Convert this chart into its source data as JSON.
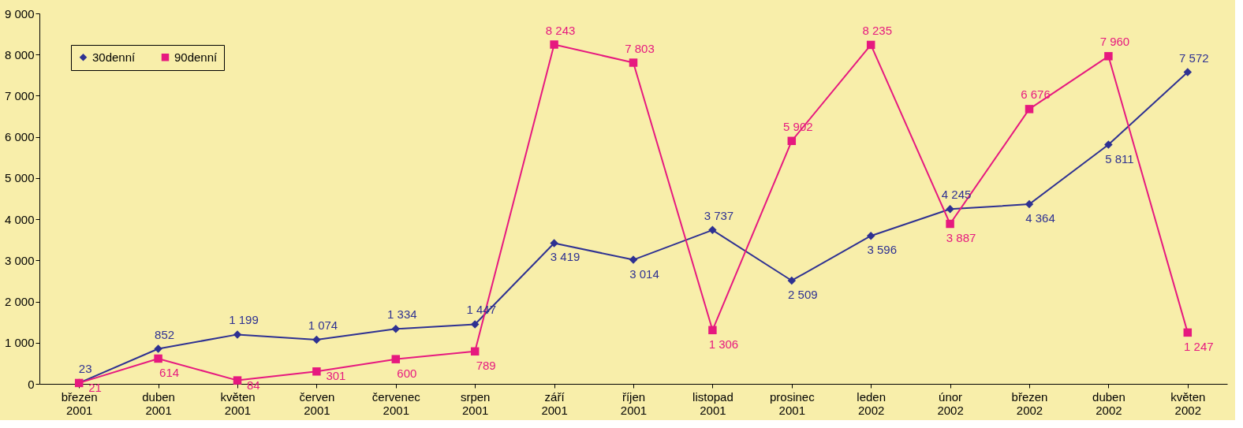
{
  "chart_data": {
    "type": "line",
    "categories": [
      "březen 2001",
      "duben 2001",
      "květen 2001",
      "červen 2001",
      "červenec 2001",
      "srpen 2001",
      "září 2001",
      "říjen 2001",
      "listopad 2001",
      "prosinec 2001",
      "leden 2002",
      "únor 2002",
      "březen 2002",
      "duben 2002",
      "květen 2002"
    ],
    "series": [
      {
        "name": "30denní",
        "color": "#2e3192",
        "marker": "diamond",
        "values": [
          23,
          852,
          1199,
          1074,
          1334,
          1447,
          3419,
          3014,
          3737,
          2509,
          3596,
          4245,
          4364,
          5811,
          7572
        ],
        "value_labels": [
          "23",
          "852",
          "1 199",
          "1 074",
          "1 334",
          "1 447",
          "3 419",
          "3 014",
          "3 737",
          "2 509",
          "3 596",
          "4 245",
          "4 364",
          "5 811",
          "7 572"
        ]
      },
      {
        "name": "90denní",
        "color": "#e6197f",
        "marker": "square",
        "values": [
          21,
          614,
          84,
          301,
          600,
          789,
          8243,
          7803,
          1306,
          5902,
          8235,
          3887,
          6676,
          7960,
          1247
        ],
        "value_labels": [
          "21",
          "614",
          "84",
          "301",
          "600",
          "789",
          "8 243",
          "7 803",
          "1 306",
          "5 902",
          "8 235",
          "3 887",
          "6 676",
          "7 960",
          "1 247"
        ]
      }
    ],
    "ylim": [
      0,
      9000
    ],
    "yticks": [
      0,
      {
        "value": 1000,
        "label": "1 000"
      },
      {
        "value": 2000,
        "label": "2 000"
      },
      {
        "value": 3000,
        "label": "3 000"
      },
      {
        "value": 4000,
        "label": "4 000"
      },
      {
        "value": 5000,
        "label": "5 000"
      },
      {
        "value": 6000,
        "label": "6 000"
      },
      {
        "value": 7000,
        "label": "7 000"
      },
      {
        "value": 8000,
        "label": "8 000"
      },
      {
        "value": 9000,
        "label": "9 000"
      }
    ],
    "grid": false,
    "legend": "top left",
    "line_style": "solid"
  }
}
